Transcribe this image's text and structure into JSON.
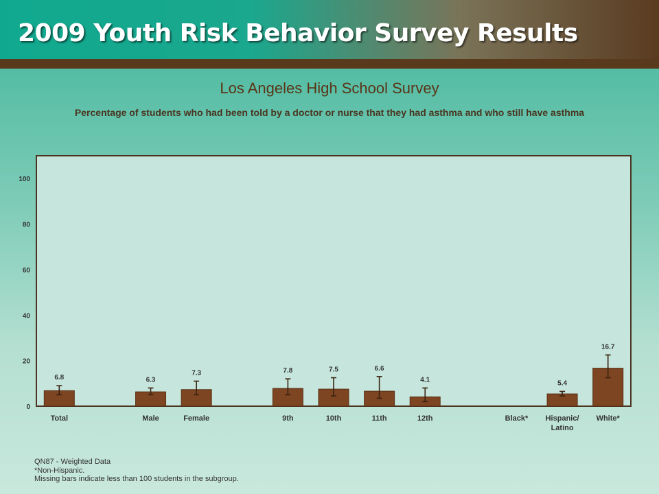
{
  "banner": {
    "title": "2009 Youth Risk Behavior Survey Results"
  },
  "chart_data": {
    "type": "bar",
    "title": "Los Angeles High School Survey",
    "subtitle": "Percentage of students who had been told by a doctor or nurse that they had asthma and who still have asthma",
    "xlabel": "",
    "ylabel": "",
    "ylim": [
      0,
      110
    ],
    "yticks": [
      0,
      20,
      40,
      60,
      80,
      100
    ],
    "grid": false,
    "categories": [
      "Total",
      "",
      "Male",
      "Female",
      "",
      "9th",
      "10th",
      "11th",
      "12th",
      "",
      "Black*",
      "Hispanic/\nLatino",
      "White*"
    ],
    "values": [
      6.8,
      null,
      6.3,
      7.3,
      null,
      7.8,
      7.5,
      6.6,
      4.1,
      null,
      null,
      5.4,
      16.7
    ],
    "ci_low": [
      5.0,
      null,
      5.0,
      5.0,
      null,
      5.0,
      4.5,
      3.5,
      2.0,
      null,
      null,
      4.5,
      12.5
    ],
    "ci_high": [
      9.0,
      null,
      8.0,
      11.0,
      null,
      12.0,
      12.5,
      13.0,
      8.0,
      null,
      null,
      6.5,
      22.5
    ],
    "colors": {
      "bar": "#7d4521",
      "bar_stroke": "#5a2f14",
      "plot_bg": "#c6e6dd",
      "plot_border": "#4a3420",
      "error_bar": "#3a2210",
      "text": "#333333"
    }
  },
  "footnotes": [
    "QN87 - Weighted Data",
    "*Non-Hispanic.",
    "Missing bars indicate less than 100 students in the subgroup."
  ]
}
